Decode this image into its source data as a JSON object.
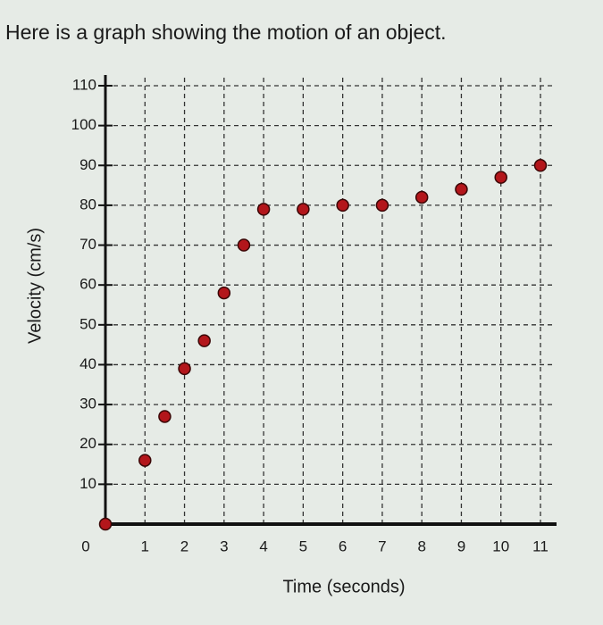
{
  "prompt": "Here is a graph showing the motion of an object.",
  "chart_data": {
    "type": "scatter",
    "xlabel": "Time (seconds)",
    "ylabel": "Velocity (cm/s)",
    "x": [
      0,
      1,
      1.5,
      2,
      2.5,
      3,
      3.5,
      4,
      5,
      6,
      7,
      8,
      9,
      10,
      11
    ],
    "values": [
      0,
      16,
      27,
      39,
      46,
      58,
      70,
      79,
      79,
      80,
      80,
      82,
      84,
      87,
      90
    ],
    "color": "#b3161b",
    "xlim": [
      0,
      11
    ],
    "xticks": [
      0,
      1,
      2,
      3,
      4,
      5,
      6,
      7,
      8,
      9,
      10,
      11
    ],
    "ylim": [
      0,
      110
    ],
    "yticks": [
      10,
      20,
      30,
      40,
      50,
      60,
      70,
      80,
      90,
      100,
      110
    ],
    "grid": true
  }
}
